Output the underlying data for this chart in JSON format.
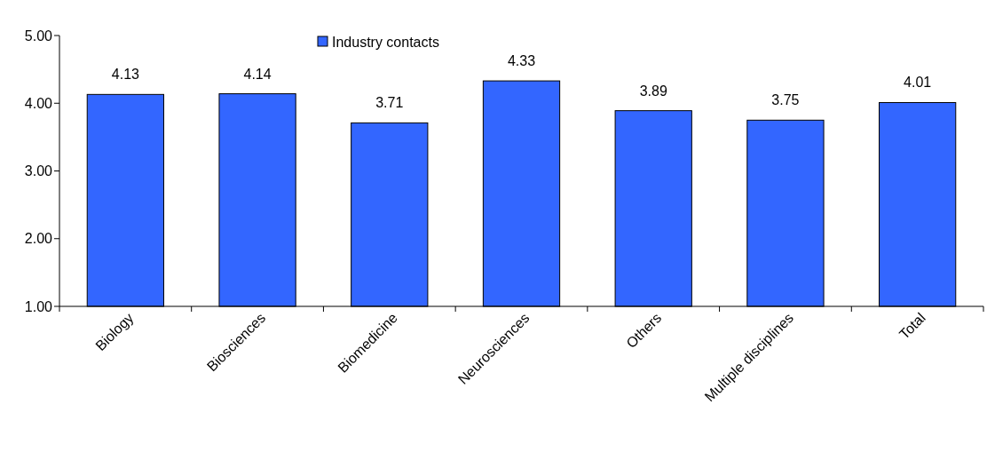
{
  "chart_data": {
    "type": "bar",
    "categories": [
      "Biology",
      "Biosciences",
      "Biomedicine",
      "Neurosciences",
      "Others",
      "Multiple disciplines",
      "Total"
    ],
    "series": [
      {
        "name": "Industry contacts",
        "color": "#3366ff",
        "values": [
          4.13,
          4.14,
          3.71,
          4.33,
          3.89,
          3.75,
          4.01
        ]
      }
    ],
    "ylim": [
      1,
      5
    ],
    "yticks": [
      {
        "value": 1,
        "label": "1.00"
      },
      {
        "value": 2,
        "label": "2.00"
      },
      {
        "value": 3,
        "label": "3.00"
      },
      {
        "value": 4,
        "label": "4.00"
      },
      {
        "value": 5,
        "label": "5.00"
      }
    ],
    "data_labels": true,
    "legend": "top",
    "grid": false
  }
}
